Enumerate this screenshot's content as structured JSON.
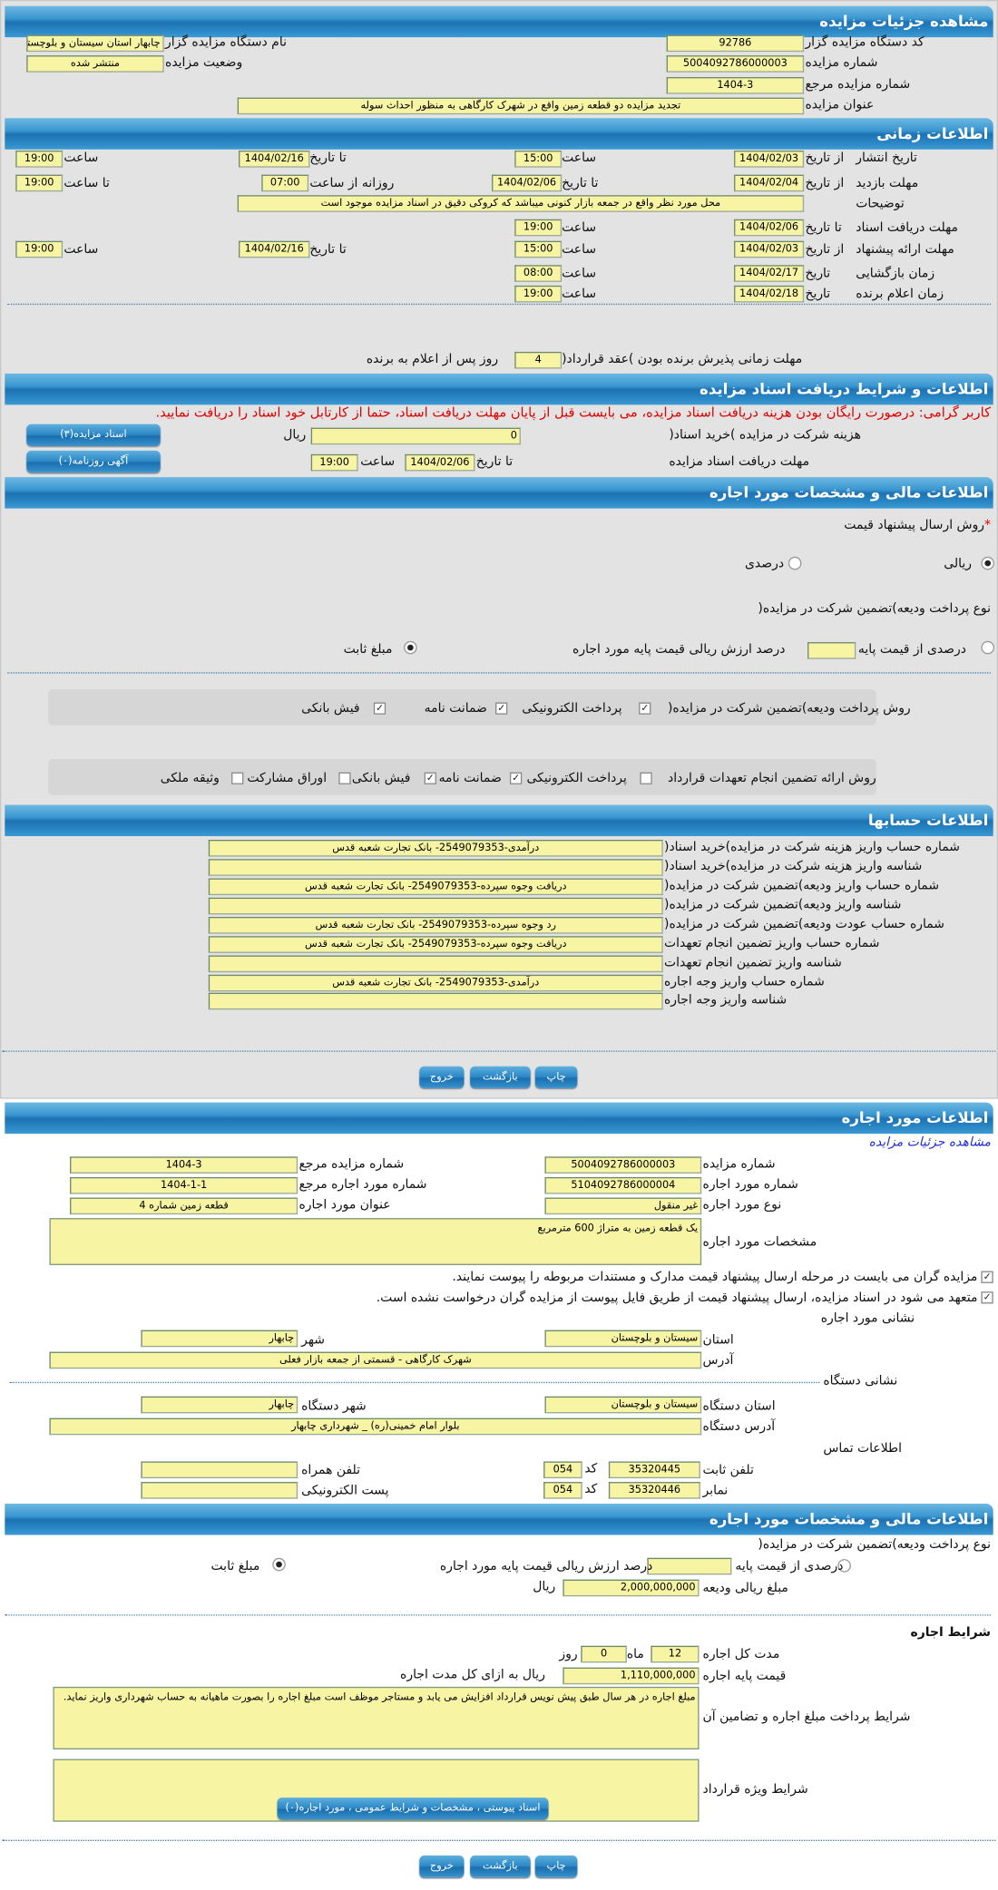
{
  "s1": {
    "title": "مشاهده جزئیات مزایده",
    "org_code_label": "کد دستگاه مزایده گزار",
    "org_code": "92786",
    "org_name_label": "نام دستگاه مزایده گزار",
    "org_name": "چابهار استان سیستان و بلوچستان",
    "num_label": "شماره مزایده",
    "num": "5004092786000003",
    "status_label": "وضعیت مزایده",
    "status": "منتشر شده",
    "ref_label": "شماره مزایده مرجع",
    "ref": "1404-3",
    "subject_label": "عنوان مزایده",
    "subject": "تجدید مزایده دو قطعه زمین واقع در شهرک کارگاهی به منظور احداث سوله"
  },
  "s2": {
    "title": "اطلاعات زمانی",
    "from_date": "از تاریخ",
    "to_date": "تا تاریخ",
    "date": "تاریخ",
    "hour": "ساعت",
    "to_hour": "تا ساعت",
    "daily_from": "روزانه از ساعت",
    "publish_label": "تاریخ انتشار",
    "publish_from": "1404/02/03",
    "publish_from_time": "15:00",
    "publish_to": "1404/02/16",
    "publish_to_time": "19:00",
    "visit_label": "مهلت بازدید",
    "visit_from": "1404/02/04",
    "visit_to": "1404/02/06",
    "visit_daily_from": "07:00",
    "visit_daily_to": "19:00",
    "desc_label": "توضیحات",
    "desc": "محل مورد نظر واقع در جمعه بازار کنونی میباشد که کروکی دقیق در اسناد مزایده موجود است",
    "docs_label": "مهلت دریافت اسناد",
    "docs_to": "1404/02/06",
    "docs_to_time": "19:00",
    "offer_label": "مهلت ارائه پیشنهاد",
    "offer_from": "1404/02/03",
    "offer_from_time": "15:00",
    "offer_to": "1404/02/16",
    "offer_to_time": "19:00",
    "open_label": "زمان بازگشایی",
    "open_date": "1404/02/17",
    "open_time": "08:00",
    "winner_label": "زمان اعلام برنده",
    "winner_date": "1404/02/18",
    "winner_time": "19:00",
    "accept_label": "مهلت زمانی پذیرش برنده بودن )عقد قرارداد(",
    "accept_days": "4",
    "accept_suffix": "روز پس از اعلام به برنده"
  },
  "s3": {
    "title": "اطلاعات و شرایط دریافت اسناد مزایده",
    "notice": "کاربر گرامی: درصورت رایگان بودن هزینه دریافت اسناد مزایده، می بایست قبل از پایان مهلت دریافت اسناد، حتما از کارتابل خود اسناد را دریافت نمایید.",
    "fee_label": "هزینه شرکت در مزایده )خرید اسناد(",
    "fee": "0",
    "rial": "ریال",
    "docs_btn": "اسناد مزایده(۳)",
    "deadline_label": "مهلت دریافت اسناد مزایده",
    "to_date": "تا تاریخ",
    "deadline_date": "1404/02/06",
    "hour": "ساعت",
    "deadline_time": "19:00",
    "news_btn": "آگهی روزنامه(۰)"
  },
  "s4": {
    "title": "اطلاعات مالی و مشخصات مورد اجاره",
    "method_label": "روش ارسال پیشنهاد قیمت",
    "required": "*",
    "opt_rial": "ریالی",
    "opt_percent": "درصدی",
    "deposit_type_label": "نوع پرداخت ودیعه)تضمین شرکت در مزایده(",
    "opt_percent_base": "درصدی از قیمت پایه",
    "percent_suffix": "درصد ارزش ریالی قیمت پایه مورد اجاره",
    "opt_fixed": "مبلغ ثابت",
    "pay_label": "روش پرداخت ودیعه)تضمین شرکت در مزایده(",
    "pay_opts": [
      {
        "label": "پرداخت الکترونیکی",
        "checked": true
      },
      {
        "label": "ضمانت نامه",
        "checked": true
      },
      {
        "label": "فیش بانکی",
        "checked": true
      }
    ],
    "guar_label": "روش ارائه تضمین انجام تعهدات قرارداد",
    "guar_opts": [
      {
        "label": "پرداخت الکترونیکی",
        "checked": false
      },
      {
        "label": "ضمانت نامه",
        "checked": true
      },
      {
        "label": "فیش بانکی",
        "checked": true
      },
      {
        "label": "اوراق مشارکت",
        "checked": false
      },
      {
        "label": "وثیقه ملکی",
        "checked": false
      }
    ]
  },
  "s5": {
    "title": "اطلاعات حسابها",
    "rows": [
      {
        "label": "شماره حساب واریز هزینه شرکت در مزایده)خرید اسناد(",
        "value": "درآمدی-2549079353- بانک تجارت شعبه قدس"
      },
      {
        "label": "شناسه واریز هزینه شرکت در مزایده)خرید اسناد(",
        "value": ""
      },
      {
        "label": "شماره حساب واریز ودیعه)تضمین شرکت در مزایده(",
        "value": "دریافت وجوه سپرده-2549079353- بانک تجارت شعبه قدس"
      },
      {
        "label": "شناسه واریز ودیعه)تضمین شرکت در مزایده(",
        "value": ""
      },
      {
        "label": "شماره حساب عودت ودیعه)تضمین شرکت در مزایده(",
        "value": "رد وجوه سپرده-2549079353- بانک تجارت شعبه قدس"
      },
      {
        "label": "شماره حساب واریز تضمین انجام تعهدات",
        "value": "دریافت وجوه سپرده-2549079353- بانک تجارت شعبه قدس"
      },
      {
        "label": "شناسه واریز تضمین انجام تعهدات",
        "value": ""
      },
      {
        "label": "شماره حساب واریز وجه اجاره",
        "value": "درآمدی-2549079353- بانک تجارت شعبه قدس"
      },
      {
        "label": "شناسه واریز وجه اجاره",
        "value": ""
      }
    ]
  },
  "buttons": {
    "print": "چاپ",
    "back": "بازگشت",
    "exit": "خروج"
  },
  "s6": {
    "title": "اطلاعات مورد اجاره",
    "link": "مشاهده جزئیات مزایده",
    "num_label": "شماره مزایده",
    "num": "5004092786000003",
    "ref_label": "شماره مزایده مرجع",
    "ref": "1404-3",
    "item_label": "شماره مورد اجاره",
    "item": "5104092786000004",
    "item_ref_label": "شماره مورد اجاره مرجع",
    "item_ref": "1404-1-1",
    "type_label": "نوع مورد اجاره",
    "type": "غیر منقول",
    "item_title_label": "عنوان مورد اجاره",
    "item_title": "قطعه زمین شماره 4",
    "spec_label": "مشخصات مورد اجاره",
    "spec": "یک قطعه زمین به متراژ 600 مترمربع",
    "check1": "مزایده گران می بایست در مرحله ارسال پیشنهاد قیمت مدارک و مستندات مربوطه را پیوست نمایند.",
    "check2": "متعهد می شود در اسناد مزایده، ارسال پیشنهاد قیمت از طریق فایل پیوست از مزایده گران درخواست نشده است.",
    "addr_title": "نشانی مورد اجاره",
    "province_label": "استان",
    "province": "سیستان و بلوچستان",
    "city_label": "شهر",
    "city": "چابهار",
    "address_label": "آدرس",
    "address": "شهرک کارگاهی - قسمتی از جمعه بازار فعلی",
    "org_addr_title": "نشانی دستگاه",
    "org_province_label": "استان دستگاه",
    "org_province": "سیستان و بلوچستان",
    "org_city_label": "شهر دستگاه",
    "org_city": "چابهار",
    "org_address_label": "آدرس دستگاه",
    "org_address": "بلوار امام خمینی(ره) _ شهرداری چابهار",
    "contact_title": "اطلاعات تماس",
    "phone_label": "تلفن ثابت",
    "phone": "35320445",
    "code_label": "کد",
    "phone_code": "054",
    "mobile_label": "تلفن همراه",
    "mobile": "",
    "fax_label": "نمابر",
    "fax": "35320446",
    "fax_code": "054",
    "email_label": "پست الکترونیکی",
    "email": ""
  },
  "s7": {
    "title": "اطلاعات مالی و مشخصات مورد اجاره",
    "deposit_type_label": "نوع پرداخت ودیعه)تضمین شرکت در مزایده(",
    "opt_percent_base": "درصدی از قیمت پایه",
    "percent_suffix": "درصد ارزش ریالی قیمت پایه مورد اجاره",
    "opt_fixed": "مبلغ ثابت",
    "deposit_label": "مبلغ ریالی ودیعه",
    "deposit": "2,000,000,000",
    "rial": "ریال",
    "terms_title": "شرایط اجاره",
    "duration_label": "مدت کل اجاره",
    "months": "12",
    "month_unit": "ماه",
    "days": "0",
    "day_unit": "روز",
    "base_price_label": "قیمت پایه اجاره",
    "base_price": "1,110,000,000",
    "base_price_suffix": "ریال به ازای کل مدت اجاره",
    "payment_terms_label": "شرایط پرداخت مبلغ اجاره و تضامین آن",
    "payment_terms": "مبلغ اجاره در هر سال طبق پیش نویس قرارداد افزایش می یابد و مستاجر موظف است مبلغ اجاره را بصورت ماهیانه به حساب شهرداری واریز نماید.",
    "special_terms_label": "شرایط ویژه قرارداد",
    "special_terms": "",
    "attachments_btn": "اسناد پیوستی ، مشخصات و شرایط عمومی ، مورد اجاره(۰)"
  },
  "colors": {
    "header": "#2a86c4",
    "field": "#f7f4a4",
    "notice": "#e00000",
    "link": "#2030d0"
  }
}
